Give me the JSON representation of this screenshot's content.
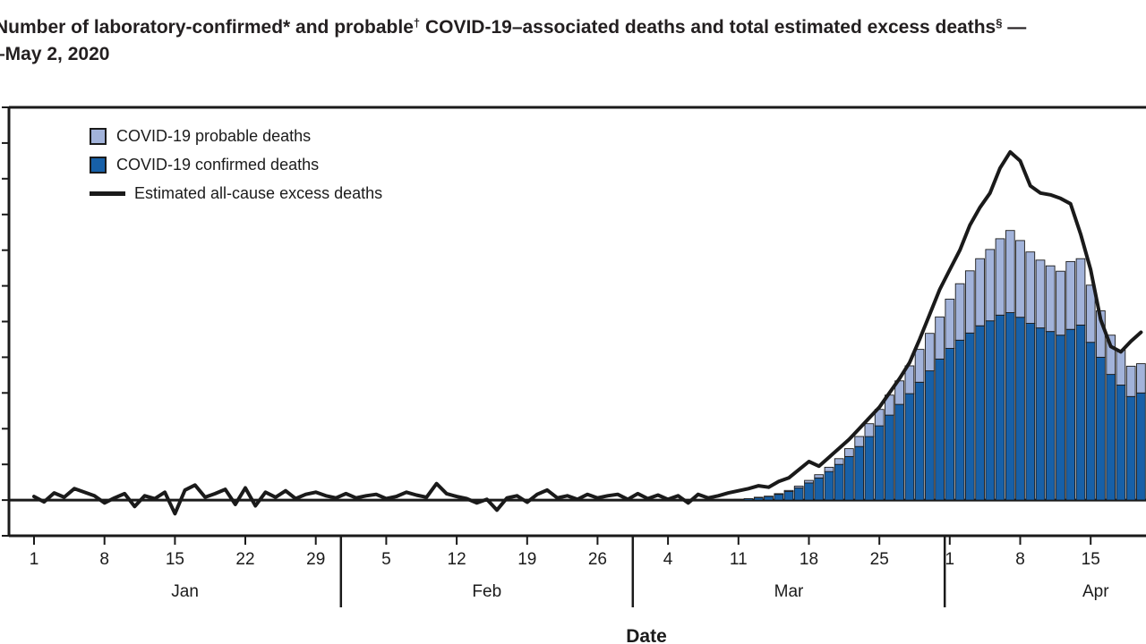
{
  "title": {
    "line1_parts": [
      {
        "text": "Number of laboratory-confirmed* and probable"
      },
      {
        "text": "†",
        "sup": true
      },
      {
        "text": " COVID-19–associated deaths and total estimated excess deaths",
        "sup": false
      },
      {
        "text": "§",
        "sup": true
      },
      {
        "text": " —",
        "sup": false
      }
    ],
    "line2": "–May 2, 2020"
  },
  "legend": {
    "items": [
      {
        "label": "COVID-19 probable deaths",
        "swatch": "square",
        "color": "#a2b3da"
      },
      {
        "label": "COVID-19 confirmed deaths",
        "swatch": "square",
        "color": "#1760a8"
      },
      {
        "label": "Estimated all-cause excess deaths",
        "swatch": "line",
        "color": "#1a1a1a"
      }
    ]
  },
  "chart_data": {
    "type": "stacked-bar+line",
    "title": "Number of laboratory-confirmed and probable COVID-19–associated deaths and total estimated excess deaths (cropped) –May 2, 2020",
    "xlabel": "Date",
    "ylabel": "",
    "x_unit": "one value per day, Jan 1 – Apr 20, 2020 (array index = days since Jan 1)",
    "y_axis": {
      "min": -100,
      "max": 1100,
      "tick_step": 100,
      "tick_labels_visible": false
    },
    "x_axis": {
      "ticks": [
        {
          "label": "1",
          "day": 0
        },
        {
          "label": "8",
          "day": 7
        },
        {
          "label": "15",
          "day": 14
        },
        {
          "label": "22",
          "day": 21
        },
        {
          "label": "29",
          "day": 28
        },
        {
          "label": "5",
          "day": 35
        },
        {
          "label": "12",
          "day": 42
        },
        {
          "label": "19",
          "day": 49
        },
        {
          "label": "26",
          "day": 56
        },
        {
          "label": "4",
          "day": 63
        },
        {
          "label": "11",
          "day": 70
        },
        {
          "label": "18",
          "day": 77
        },
        {
          "label": "25",
          "day": 84
        },
        {
          "label": "1",
          "day": 91
        },
        {
          "label": "8",
          "day": 98
        },
        {
          "label": "15",
          "day": 105
        }
      ],
      "months": [
        {
          "label": "Jan",
          "center_day": 15
        },
        {
          "label": "Feb",
          "center_day": 45
        },
        {
          "label": "Mar",
          "center_day": 75
        },
        {
          "label": "Apr",
          "center_day": 105.5
        }
      ],
      "month_separator_days": [
        30.5,
        59.5,
        90.5
      ]
    },
    "series": [
      {
        "name": "COVID-19 confirmed deaths",
        "type": "bar-stack-bottom",
        "color": "#1760a8",
        "values": [
          0,
          0,
          0,
          0,
          0,
          0,
          0,
          0,
          0,
          0,
          0,
          0,
          0,
          0,
          0,
          0,
          0,
          0,
          0,
          0,
          0,
          0,
          0,
          0,
          0,
          0,
          0,
          0,
          0,
          0,
          0,
          0,
          0,
          0,
          0,
          0,
          0,
          0,
          0,
          0,
          0,
          0,
          0,
          0,
          0,
          0,
          0,
          0,
          0,
          0,
          0,
          0,
          0,
          0,
          0,
          0,
          0,
          0,
          0,
          0,
          0,
          0,
          0,
          0,
          0,
          0,
          0,
          0,
          0,
          0,
          2,
          4,
          7,
          10,
          16,
          24,
          34,
          48,
          62,
          80,
          100,
          122,
          150,
          178,
          208,
          238,
          268,
          298,
          330,
          362,
          395,
          425,
          448,
          468,
          488,
          502,
          518,
          525,
          512,
          495,
          482,
          472,
          462,
          478,
          490,
          442,
          400,
          352,
          322,
          290,
          300
        ]
      },
      {
        "name": "COVID-19 probable deaths",
        "type": "bar-stack-top",
        "color": "#a2b3da",
        "values": [
          0,
          0,
          0,
          0,
          0,
          0,
          0,
          0,
          0,
          0,
          0,
          0,
          0,
          0,
          0,
          0,
          0,
          0,
          0,
          0,
          0,
          0,
          0,
          0,
          0,
          0,
          0,
          0,
          0,
          0,
          0,
          0,
          0,
          0,
          0,
          0,
          0,
          0,
          0,
          0,
          0,
          0,
          0,
          0,
          0,
          0,
          0,
          0,
          0,
          0,
          0,
          0,
          0,
          0,
          0,
          0,
          0,
          0,
          0,
          0,
          0,
          0,
          0,
          0,
          0,
          0,
          0,
          0,
          0,
          0,
          0,
          0,
          1,
          1,
          2,
          3,
          5,
          7,
          9,
          12,
          16,
          22,
          28,
          36,
          46,
          56,
          66,
          78,
          92,
          105,
          118,
          138,
          158,
          174,
          188,
          200,
          214,
          230,
          215,
          200,
          190,
          184,
          179,
          190,
          186,
          160,
          130,
          110,
          98,
          85,
          82
        ]
      },
      {
        "name": "Estimated all-cause excess deaths",
        "type": "line",
        "color": "#1a1a1a",
        "values": [
          10,
          -5,
          20,
          8,
          32,
          22,
          12,
          -8,
          6,
          18,
          -18,
          12,
          4,
          22,
          -38,
          28,
          42,
          8,
          18,
          30,
          -12,
          34,
          -16,
          22,
          8,
          26,
          4,
          16,
          22,
          12,
          6,
          18,
          6,
          12,
          16,
          4,
          10,
          22,
          14,
          8,
          46,
          18,
          10,
          4,
          -8,
          2,
          -28,
          6,
          12,
          -6,
          16,
          28,
          6,
          12,
          2,
          16,
          6,
          12,
          16,
          2,
          18,
          4,
          14,
          2,
          12,
          -8,
          16,
          6,
          12,
          20,
          26,
          32,
          40,
          36,
          52,
          62,
          85,
          108,
          95,
          120,
          145,
          170,
          200,
          230,
          260,
          300,
          340,
          385,
          450,
          520,
          590,
          645,
          700,
          770,
          820,
          860,
          930,
          975,
          950,
          880,
          860,
          855,
          845,
          830,
          745,
          645,
          505,
          430,
          415,
          445,
          470
        ]
      }
    ]
  }
}
